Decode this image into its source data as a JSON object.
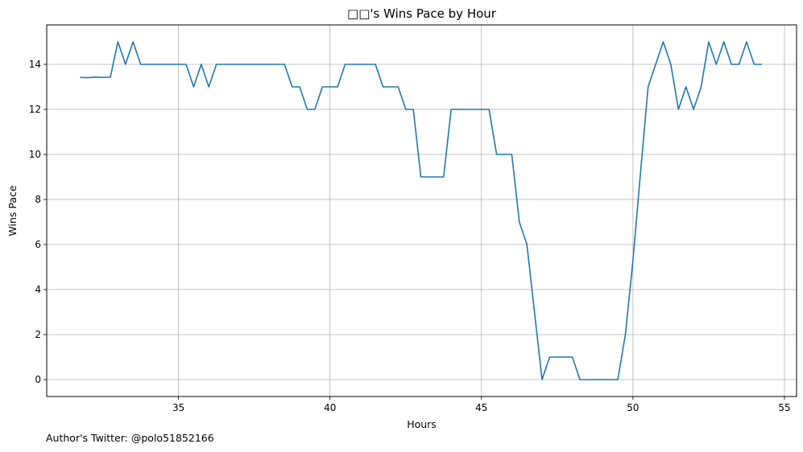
{
  "chart_data": {
    "type": "line",
    "title": "□□'s Wins Pace by Hour",
    "xlabel": "Hours",
    "ylabel": "Wins Pace",
    "xlim": [
      30.65,
      55.4
    ],
    "ylim": [
      -0.75,
      15.75
    ],
    "xticks": [
      35,
      40,
      45,
      50,
      55
    ],
    "yticks": [
      0,
      2,
      4,
      6,
      8,
      10,
      12,
      14
    ],
    "grid": true,
    "legend": "none",
    "series_color": "#1f77b4",
    "series": [
      {
        "x": [
          31.75,
          32.0,
          32.25,
          32.5,
          32.75,
          33.0,
          33.25,
          33.5,
          33.75,
          34.0,
          34.25,
          34.5,
          34.75,
          35.0,
          35.25,
          35.5,
          35.75,
          36.0,
          36.25,
          36.5,
          36.75,
          37.0,
          37.25,
          37.5,
          37.75,
          38.0,
          38.25,
          38.5,
          38.75,
          39.0,
          39.25,
          39.5,
          39.75,
          40.0,
          40.25,
          40.5,
          40.75,
          41.0,
          41.25,
          41.5,
          41.75,
          42.0,
          42.25,
          42.5,
          42.75,
          43.0,
          43.25,
          43.5,
          43.75,
          44.0,
          44.25,
          44.5,
          44.75,
          45.0,
          45.25,
          45.5,
          45.75,
          46.0,
          46.25,
          46.5,
          46.75,
          47.0,
          47.25,
          47.5,
          47.75,
          48.0,
          48.25,
          48.5,
          48.75,
          49.0,
          49.25,
          49.5,
          49.75,
          50.0,
          50.25,
          50.5,
          50.75,
          51.0,
          51.25,
          51.5,
          51.75,
          52.0,
          52.25,
          52.5,
          52.75,
          53.0,
          53.25,
          53.5,
          53.75,
          54.0,
          54.25
        ],
        "y": [
          13.42,
          13.41,
          13.43,
          13.42,
          13.43,
          15,
          14,
          15,
          14,
          14,
          14,
          14,
          14,
          14,
          14,
          13,
          14,
          13,
          14,
          14,
          14,
          14,
          14,
          14,
          14,
          14,
          14,
          14,
          13,
          13,
          12,
          12,
          13,
          13,
          13,
          14,
          14,
          14,
          14,
          14,
          13,
          13,
          13,
          12,
          12,
          9,
          9,
          9,
          9,
          12,
          12,
          12,
          12,
          12,
          12,
          10,
          10,
          10,
          7,
          6,
          3,
          0,
          1,
          1,
          1,
          1,
          0,
          0,
          0,
          0,
          0,
          0,
          2,
          5.3,
          9.2,
          13,
          14,
          15,
          14,
          12,
          13,
          12,
          13,
          15,
          14,
          15,
          14,
          14,
          15,
          14,
          14
        ]
      }
    ]
  },
  "footer": {
    "text": "Author's Twitter: @polo51852166"
  }
}
